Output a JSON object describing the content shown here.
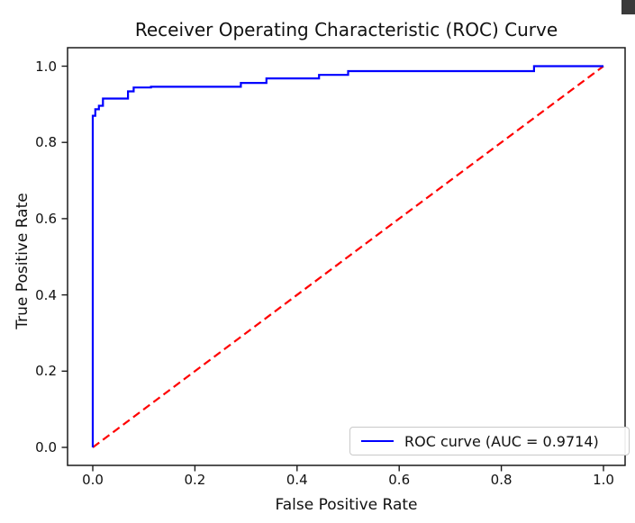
{
  "window": {
    "corner_accent_color": "#3a3a3a",
    "background_color": "#ffffff"
  },
  "chart_data": {
    "type": "line",
    "title": "Receiver Operating Characteristic (ROC) Curve",
    "xlabel": "False Positive Rate",
    "ylabel": "True Positive Rate",
    "xlim": [
      -0.05,
      1.05
    ],
    "ylim": [
      -0.05,
      1.05
    ],
    "grid": false,
    "xticks": {
      "values": [
        0.0,
        0.2,
        0.4,
        0.6,
        0.8,
        1.0
      ],
      "labels": [
        "0.0",
        "0.2",
        "0.4",
        "0.6",
        "0.8",
        "1.0"
      ]
    },
    "yticks": {
      "values": [
        0.0,
        0.2,
        0.4,
        0.6,
        0.8,
        1.0
      ],
      "labels": [
        "0.0",
        "0.2",
        "0.4",
        "0.6",
        "0.8",
        "1.0"
      ]
    },
    "legend": {
      "position": "lower right",
      "entries": [
        {
          "label": "ROC curve (AUC = 0.9714)",
          "color": "#0000ff",
          "style": "solid"
        }
      ]
    },
    "auc": 0.9714,
    "series": [
      {
        "name": "ROC curve",
        "color": "#0000ff",
        "style": "solid",
        "line_width": 2.2,
        "points": [
          [
            0.0,
            0.0
          ],
          [
            0.0,
            0.87
          ],
          [
            0.005,
            0.87
          ],
          [
            0.005,
            0.887
          ],
          [
            0.012,
            0.887
          ],
          [
            0.012,
            0.896
          ],
          [
            0.02,
            0.896
          ],
          [
            0.02,
            0.915
          ],
          [
            0.069,
            0.915
          ],
          [
            0.069,
            0.934
          ],
          [
            0.08,
            0.934
          ],
          [
            0.08,
            0.944
          ],
          [
            0.114,
            0.944
          ],
          [
            0.114,
            0.946
          ],
          [
            0.29,
            0.946
          ],
          [
            0.29,
            0.956
          ],
          [
            0.34,
            0.956
          ],
          [
            0.34,
            0.968
          ],
          [
            0.443,
            0.968
          ],
          [
            0.443,
            0.977
          ],
          [
            0.5,
            0.977
          ],
          [
            0.5,
            0.987
          ],
          [
            0.864,
            0.987
          ],
          [
            0.864,
            1.0
          ],
          [
            1.0,
            1.0
          ]
        ]
      },
      {
        "name": "chance diagonal",
        "color": "#ff0000",
        "style": "dashed",
        "line_width": 2.2,
        "points": [
          [
            0.0,
            0.0
          ],
          [
            1.0,
            1.0
          ]
        ]
      }
    ]
  }
}
